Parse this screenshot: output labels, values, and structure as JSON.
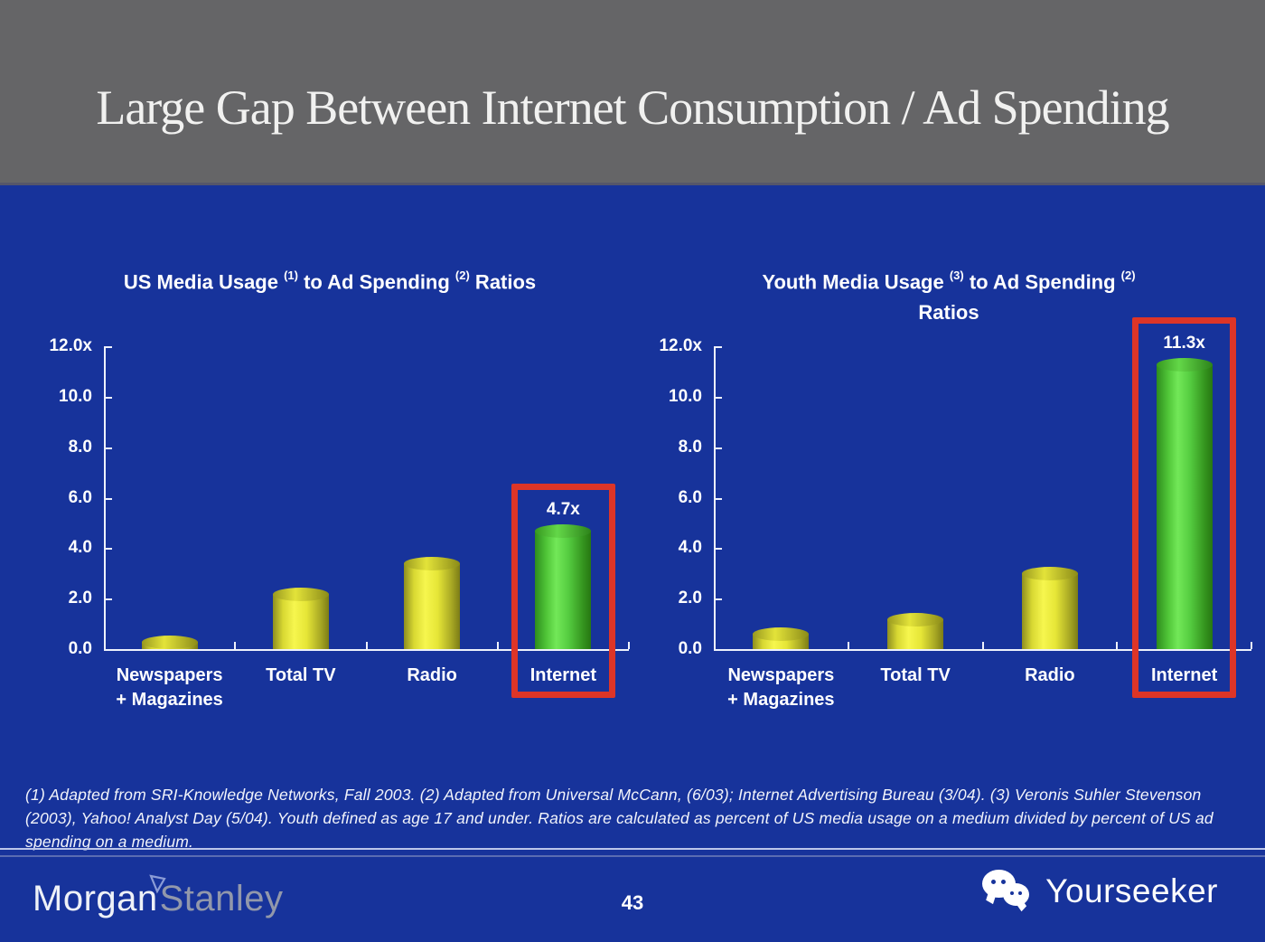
{
  "slide": {
    "title": "Large Gap Between Internet Consumption / Ad Spending",
    "page_number": "43",
    "footnote": "(1) Adapted from SRI-Knowledge Networks, Fall 2003.  (2) Adapted from Universal McCann, (6/03); Internet Advertising Bureau (3/04). (3) Veronis Suhler Stevenson (2003), Yahoo! Analyst Day (5/04).  Youth defined as age 17 and under.  Ratios are calculated as percent of US media usage on a medium divided by percent of US ad spending on a medium.",
    "brand": {
      "part1": "Morgan",
      "part2": "Stanley",
      "mark_icon": "morgan-stanley-triangle-icon"
    },
    "watermark": {
      "label": "Yourseeker",
      "icon": "wechat-icon"
    }
  },
  "colors": {
    "banner_gray": "#656567",
    "background_blue": "#17339b",
    "bar_yellow": "#f0f040",
    "bar_green": "#5ecf45",
    "highlight_red": "#dd3527",
    "axis_white": "#eef2fc",
    "text_white": "#ffffff"
  },
  "chart_data": [
    {
      "type": "bar",
      "title": "US Media Usage ^(1)^ to Ad Spending ^(2)^ Ratios",
      "categories": [
        "Newspapers\n+ Magazines",
        "Total TV",
        "Radio",
        "Internet"
      ],
      "values": [
        0.3,
        2.2,
        3.4,
        4.7
      ],
      "bar_colors": [
        "yellow",
        "yellow",
        "yellow",
        "green"
      ],
      "highlight_index": 3,
      "highlight_label": "4.7x",
      "xlabel": "",
      "ylabel": "",
      "ylim": [
        0,
        12
      ],
      "ytick_step": 2,
      "ytick_labels": [
        "12.0x",
        "10.0",
        "8.0",
        "6.0",
        "4.0",
        "2.0",
        "0.0"
      ],
      "grid": false,
      "legend": null
    },
    {
      "type": "bar",
      "title": "Youth Media Usage ^(3)^ to Ad Spending ^(2)^\nRatios",
      "categories": [
        "Newspapers\n+ Magazines",
        "Total TV",
        "Radio",
        "Internet"
      ],
      "values": [
        0.6,
        1.2,
        3.0,
        11.3
      ],
      "bar_colors": [
        "yellow",
        "yellow",
        "yellow",
        "green"
      ],
      "highlight_index": 3,
      "highlight_label": "11.3x",
      "xlabel": "",
      "ylabel": "",
      "ylim": [
        0,
        12
      ],
      "ytick_step": 2,
      "ytick_labels": [
        "12.0x",
        "10.0",
        "8.0",
        "6.0",
        "4.0",
        "2.0",
        "0.0"
      ],
      "grid": false,
      "legend": null
    }
  ]
}
